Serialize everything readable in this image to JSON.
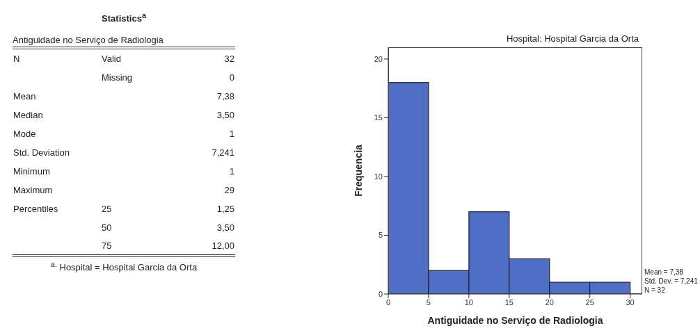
{
  "chart_data": [
    {
      "type": "other",
      "title": "Statistics$^{a}$",
      "subtitle": "Antiguidade no Serviço de Radiologia",
      "annotations": [
        "N\tValid\t32",
        "\tMissing\t0",
        "Mean\t\t7,38",
        "Median\t\t3,50",
        "Mode\t\t1",
        "Std. Deviation\t\t7,241",
        "Minimum\t\t1",
        "Maximum\t\t29",
        "Percentiles\t25\t1,25",
        "\t50\t3,50",
        "\t75\t12,00",
        "$^{a.}$ Hospital = Hospital Garcia da Orta"
      ]
    },
    {
      "type": "histogram",
      "title": "Hospital: Hospital Garcia da Orta",
      "xlabel": "Antiguidade no Serviço de Radiologia",
      "ylabel": "Frequencia",
      "bins": [
        0,
        5,
        10,
        15,
        20,
        25,
        30
      ],
      "values": [
        18,
        2,
        7,
        3,
        1,
        1
      ],
      "color": "#4f6fc6",
      "xlim": [
        0,
        31.5
      ],
      "ylim": [
        0,
        21
      ],
      "xticks": [
        0,
        5,
        10,
        15,
        20,
        25,
        30
      ],
      "yticks": [
        0,
        5,
        10,
        15,
        20
      ],
      "annotations": [
        "Mean = 7,38",
        "Std. Dev. = 7,241",
        "N = 32"
      ]
    }
  ]
}
